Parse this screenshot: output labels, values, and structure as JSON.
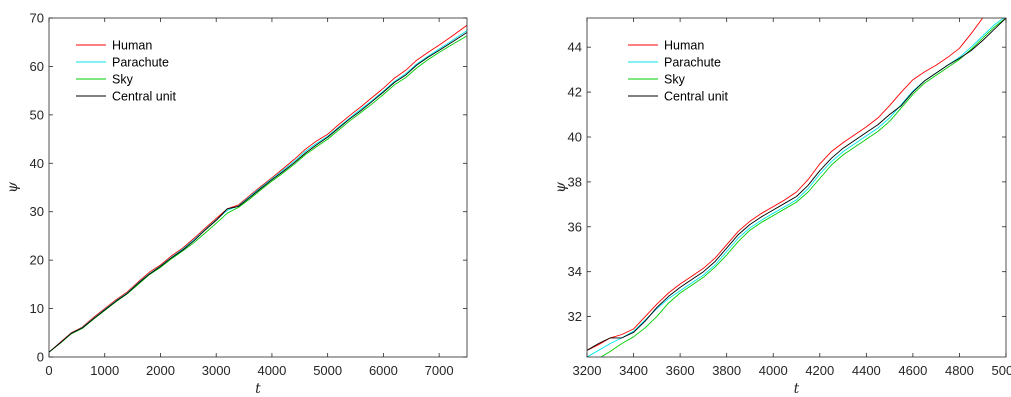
{
  "chart_data": [
    {
      "type": "line",
      "xlabel": "t",
      "ylabel": "ψ",
      "xlim": [
        0,
        7500
      ],
      "ylim": [
        0,
        70
      ],
      "xticks": [
        0,
        1000,
        2000,
        3000,
        4000,
        5000,
        6000,
        7000
      ],
      "yticks": [
        0,
        10,
        20,
        30,
        40,
        50,
        60,
        70
      ],
      "grid": false,
      "legend_position": "top-left",
      "series": [
        {
          "name": "Human",
          "color": "#ff0000",
          "x": [
            0,
            200,
            400,
            600,
            800,
            1000,
            1200,
            1400,
            1600,
            1800,
            2000,
            2200,
            2400,
            2600,
            2800,
            3000,
            3200,
            3400,
            3600,
            3800,
            4000,
            4200,
            4400,
            4600,
            4800,
            5000,
            5200,
            5400,
            5600,
            5800,
            6000,
            6200,
            6400,
            6600,
            6800,
            7000,
            7200,
            7500
          ],
          "y": [
            1.0,
            3.0,
            5.0,
            6.2,
            8.2,
            10.0,
            11.8,
            13.4,
            15.5,
            17.5,
            19.0,
            20.9,
            22.5,
            24.5,
            26.6,
            28.6,
            30.6,
            31.4,
            33.3,
            35.2,
            37.0,
            38.9,
            40.8,
            42.9,
            44.6,
            46.0,
            48.0,
            49.9,
            51.7,
            53.6,
            55.5,
            57.6,
            59.2,
            61.3,
            62.9,
            64.4,
            66.0,
            68.5
          ]
        },
        {
          "name": "Parachute",
          "color": "#00e5ee",
          "x": [
            0,
            200,
            400,
            600,
            800,
            1000,
            1200,
            1400,
            1600,
            1800,
            2000,
            2200,
            2400,
            2600,
            2800,
            3000,
            3200,
            3400,
            3600,
            3800,
            4000,
            4200,
            4400,
            4600,
            4800,
            5000,
            5200,
            5400,
            5600,
            5800,
            6000,
            6200,
            6400,
            6600,
            6800,
            7000,
            7200,
            7500
          ],
          "y": [
            1.0,
            2.9,
            4.9,
            6.1,
            8.0,
            9.8,
            11.6,
            13.2,
            15.3,
            17.2,
            18.8,
            20.6,
            22.3,
            24.2,
            26.3,
            28.3,
            30.3,
            31.2,
            33.1,
            35.0,
            36.8,
            38.6,
            40.4,
            42.5,
            44.1,
            45.6,
            47.5,
            49.4,
            51.2,
            53.0,
            54.9,
            56.9,
            58.5,
            60.5,
            62.1,
            63.6,
            65.1,
            67.4
          ]
        },
        {
          "name": "Sky",
          "color": "#00cc00",
          "x": [
            0,
            200,
            400,
            600,
            800,
            1000,
            1200,
            1400,
            1600,
            1800,
            2000,
            2200,
            2400,
            2600,
            2800,
            3000,
            3200,
            3400,
            3600,
            3800,
            4000,
            4200,
            4400,
            4600,
            4800,
            5000,
            5200,
            5400,
            5600,
            5800,
            6000,
            6200,
            6400,
            6600,
            6800,
            7000,
            7200,
            7500
          ],
          "y": [
            1.0,
            2.8,
            4.8,
            5.9,
            7.8,
            9.6,
            11.4,
            13.0,
            15.0,
            17.0,
            18.5,
            20.3,
            21.9,
            23.6,
            25.6,
            27.6,
            29.7,
            30.9,
            32.6,
            34.5,
            36.3,
            38.0,
            39.8,
            41.8,
            43.4,
            45.0,
            46.9,
            48.8,
            50.5,
            52.3,
            54.2,
            56.2,
            57.7,
            59.7,
            61.4,
            62.9,
            64.3,
            66.3
          ]
        },
        {
          "name": "Central unit",
          "color": "#000000",
          "x": [
            0,
            200,
            400,
            600,
            800,
            1000,
            1200,
            1400,
            1600,
            1800,
            2000,
            2200,
            2400,
            2600,
            2800,
            3000,
            3200,
            3400,
            3600,
            3800,
            4000,
            4200,
            4400,
            4600,
            4800,
            5000,
            5200,
            5400,
            5600,
            5800,
            6000,
            6200,
            6400,
            6600,
            6800,
            7000,
            7200,
            7500
          ],
          "y": [
            1.0,
            2.9,
            4.9,
            6.0,
            7.9,
            9.7,
            11.5,
            13.1,
            15.2,
            17.1,
            18.7,
            20.5,
            22.1,
            24.0,
            26.2,
            28.2,
            30.6,
            31.1,
            32.9,
            34.8,
            36.6,
            38.3,
            40.1,
            42.1,
            43.8,
            45.4,
            47.3,
            49.2,
            50.9,
            52.8,
            54.7,
            56.7,
            58.2,
            60.3,
            61.9,
            63.3,
            64.8,
            67.0
          ]
        }
      ]
    },
    {
      "type": "line",
      "xlabel": "t",
      "ylabel": "ψ",
      "xlim": [
        3200,
        5000
      ],
      "ylim": [
        30.2,
        45.3
      ],
      "xticks": [
        3200,
        3400,
        3600,
        3800,
        4000,
        4200,
        4400,
        4600,
        4800,
        5000
      ],
      "xtick_labels": [
        "3200",
        "3400",
        "3600",
        "3800",
        "4000",
        "4200",
        "4400",
        "4600",
        "4800",
        "5000"
      ],
      "yticks": [
        32,
        34,
        36,
        38,
        40,
        42,
        44
      ],
      "grid": false,
      "legend_position": "top-left",
      "series": [
        {
          "name": "Human",
          "color": "#ff0000",
          "x": [
            3200,
            3250,
            3300,
            3350,
            3400,
            3450,
            3500,
            3550,
            3600,
            3650,
            3700,
            3750,
            3800,
            3850,
            3900,
            3950,
            4000,
            4050,
            4100,
            4150,
            4200,
            4250,
            4300,
            4350,
            4400,
            4450,
            4500,
            4550,
            4600,
            4650,
            4700,
            4750,
            4800,
            4850,
            4900
          ],
          "y": [
            30.5,
            30.75,
            31.05,
            31.2,
            31.45,
            32.0,
            32.55,
            33.05,
            33.45,
            33.8,
            34.15,
            34.6,
            35.2,
            35.8,
            36.25,
            36.6,
            36.9,
            37.2,
            37.55,
            38.1,
            38.8,
            39.35,
            39.75,
            40.1,
            40.45,
            40.85,
            41.4,
            42.0,
            42.55,
            42.9,
            43.2,
            43.55,
            43.95,
            44.6,
            45.3
          ]
        },
        {
          "name": "Parachute",
          "color": "#00e5ee",
          "x": [
            3200,
            3250,
            3300,
            3350,
            3400,
            3450,
            3500,
            3550,
            3600,
            3650,
            3700,
            3750,
            3800,
            3850,
            3900,
            3950,
            4000,
            4050,
            4100,
            4150,
            4200,
            4250,
            4300,
            4350,
            4400,
            4450,
            4500,
            4550,
            4600,
            4650,
            4700,
            4750,
            4800,
            4850,
            4900,
            4950,
            4990
          ],
          "y": [
            30.2,
            30.5,
            30.8,
            31.05,
            31.35,
            31.85,
            32.35,
            32.8,
            33.15,
            33.5,
            33.85,
            34.3,
            34.9,
            35.5,
            35.95,
            36.3,
            36.6,
            36.9,
            37.2,
            37.7,
            38.35,
            38.9,
            39.35,
            39.7,
            40.05,
            40.4,
            40.85,
            41.45,
            42.05,
            42.5,
            42.85,
            43.2,
            43.55,
            44.0,
            44.5,
            45.0,
            45.3
          ]
        },
        {
          "name": "Sky",
          "color": "#00cc00",
          "x": [
            3260,
            3300,
            3350,
            3400,
            3450,
            3500,
            3550,
            3600,
            3650,
            3700,
            3750,
            3800,
            3850,
            3900,
            3950,
            4000,
            4050,
            4100,
            4150,
            4200,
            4250,
            4300,
            4350,
            4400,
            4450,
            4500,
            4550,
            4600,
            4650,
            4700,
            4750,
            4800,
            4850,
            4900,
            4950,
            5000
          ],
          "y": [
            30.2,
            30.45,
            30.8,
            31.1,
            31.5,
            32.0,
            32.6,
            33.05,
            33.4,
            33.75,
            34.2,
            34.75,
            35.35,
            35.85,
            36.2,
            36.5,
            36.8,
            37.1,
            37.55,
            38.15,
            38.75,
            39.2,
            39.55,
            39.9,
            40.25,
            40.7,
            41.3,
            41.9,
            42.4,
            42.75,
            43.1,
            43.45,
            43.9,
            44.4,
            44.9,
            45.3
          ]
        },
        {
          "name": "Central unit",
          "color": "#000000",
          "x": [
            3200,
            3250,
            3300,
            3350,
            3400,
            3450,
            3500,
            3550,
            3600,
            3650,
            3700,
            3750,
            3800,
            3850,
            3900,
            3950,
            4000,
            4050,
            4100,
            4150,
            4200,
            4250,
            4300,
            4350,
            4400,
            4450,
            4500,
            4550,
            4600,
            4650,
            4700,
            4750,
            4800,
            4850,
            4900,
            4950,
            5000
          ],
          "y": [
            30.5,
            30.8,
            31.05,
            31.05,
            31.3,
            31.8,
            32.4,
            32.9,
            33.3,
            33.65,
            34.0,
            34.45,
            35.05,
            35.65,
            36.1,
            36.45,
            36.75,
            37.05,
            37.35,
            37.85,
            38.5,
            39.05,
            39.5,
            39.85,
            40.2,
            40.55,
            41.0,
            41.4,
            42.0,
            42.5,
            42.85,
            43.2,
            43.5,
            43.85,
            44.3,
            44.8,
            45.3
          ]
        }
      ]
    }
  ]
}
